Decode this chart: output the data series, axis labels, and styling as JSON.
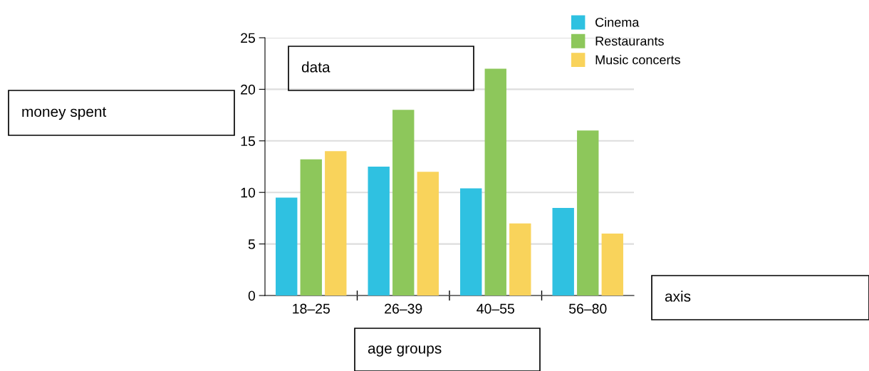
{
  "chart_data": {
    "type": "bar",
    "categories": [
      "18–25",
      "26–39",
      "40–55",
      "56–80"
    ],
    "series": [
      {
        "name": "Cinema",
        "color": "#2fc1e1",
        "values": [
          9.5,
          12.5,
          10.4,
          8.5
        ]
      },
      {
        "name": "Restaurants",
        "color": "#8dc75b",
        "values": [
          13.2,
          18,
          22,
          16
        ]
      },
      {
        "name": "Music concerts",
        "color": "#f9d35b",
        "values": [
          14,
          12,
          7,
          6
        ]
      }
    ],
    "ylim": [
      0,
      25
    ],
    "yticks": [
      0,
      5,
      10,
      15,
      20,
      25
    ],
    "grid": "y",
    "legend": "top right",
    "annotations": [
      "data",
      "money spent",
      "axis",
      "age groups"
    ]
  }
}
